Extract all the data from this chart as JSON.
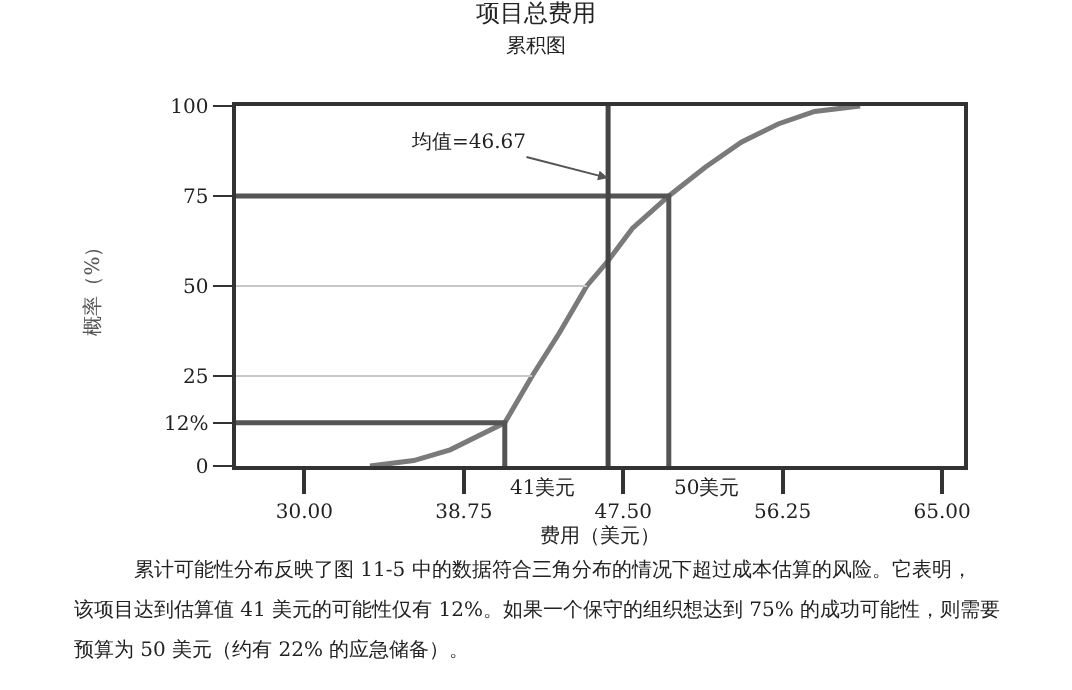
{
  "chart_data": {
    "type": "line",
    "title": "项目总费用",
    "subtitle": "累积图",
    "xlabel": "费用（美元）",
    "ylabel": "概率（%）",
    "xlim": [
      26.25,
      66.2
    ],
    "ylim": [
      0,
      100
    ],
    "xticks": [
      {
        "value": 30,
        "label": "30.00"
      },
      {
        "value": 38.75,
        "label": "38.75"
      },
      {
        "value": 47.5,
        "label": "47.50"
      },
      {
        "value": 56.25,
        "label": "56.25"
      },
      {
        "value": 65,
        "label": "65.00"
      }
    ],
    "yticks": [
      0,
      {
        "value": 12,
        "label": "12%"
      },
      25,
      50,
      75,
      100
    ],
    "series": [
      {
        "color": "#7a7a7a",
        "x": [
          33.6,
          36,
          38,
          41,
          42.5,
          44,
          45.5,
          46.67,
          48,
          50,
          52,
          54,
          56,
          58,
          60.5
        ],
        "values": [
          0,
          1.5,
          4.5,
          12,
          25,
          37,
          50,
          57,
          66,
          75,
          83,
          90,
          95,
          98.5,
          100
        ]
      },
      {
        "color": "#c8c8c8",
        "x": [
          26.25,
          42.5
        ],
        "values": [
          25,
          25
        ]
      },
      {
        "color": "#c8c8c8",
        "x": [
          26.25,
          45.5
        ],
        "values": [
          50,
          50
        ]
      },
      {
        "color": "#555555",
        "x": [
          26.25,
          41,
          41
        ],
        "values": [
          12,
          12,
          0
        ]
      },
      {
        "color": "#555555",
        "x": [
          26.25,
          50,
          50
        ],
        "values": [
          75,
          75,
          0
        ]
      }
    ],
    "ref_lines": [
      {
        "axis": "x",
        "value": 46.67,
        "color": "#444444"
      }
    ],
    "annotations": [
      {
        "text": "均值=46.67",
        "x": 46.67,
        "y": 80
      },
      {
        "text": "41美元",
        "x": 41,
        "y": 0
      },
      {
        "text": "50美元",
        "x": 50,
        "y": 0
      },
      "累计可能性分布反映了图 11-5 中的数据符合三角分布的情况下超过成本估算的风险。它表明，",
      "该项目达到估算值 41 美元的可能性仅有 12%。如果一个保守的组织想达到 75% 的成功可能性，则需要",
      "预算为 50 美元（约有 22% 的应急储备）。"
    ]
  }
}
